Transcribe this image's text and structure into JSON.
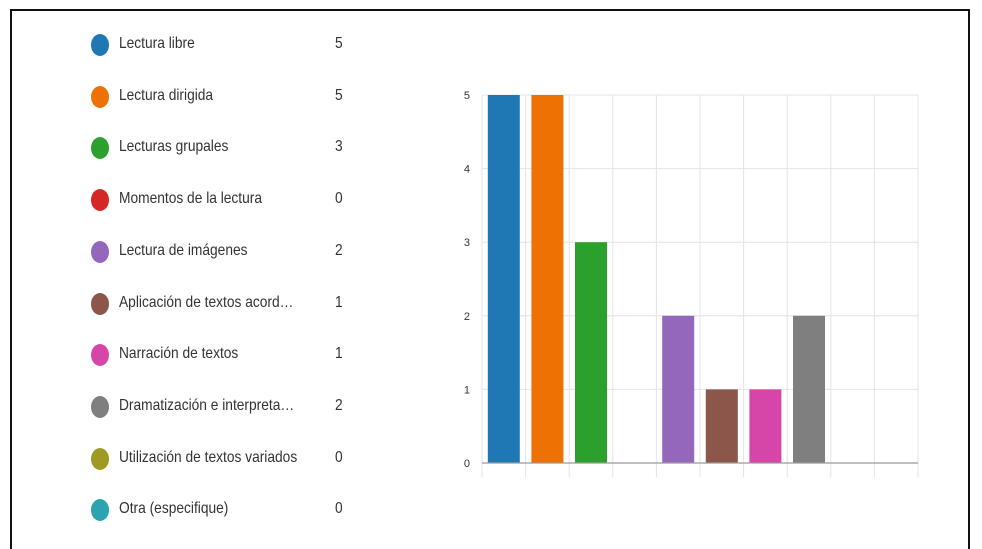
{
  "chart_data": {
    "type": "bar",
    "categories": [
      "Lectura libre",
      "Lectura dirigida",
      "Lecturas grupales",
      "Momentos de la lectura",
      "Lectura de imágenes",
      "Aplicación de textos acordes a...",
      "Narración de textos",
      "Dramatización e interpretació...",
      "Utilización de textos variados",
      "Otra (especifique)"
    ],
    "values": [
      5,
      5,
      3,
      0,
      2,
      1,
      1,
      2,
      0,
      0
    ],
    "colors": [
      "#1f77b4",
      "#ee7203",
      "#2ca02c",
      "#d62728",
      "#9467bd",
      "#8c564b",
      "#d646a8",
      "#7f7f7f",
      "#a09a22",
      "#2ba3b0"
    ],
    "ylim": [
      0,
      5
    ],
    "yticks": [
      "0",
      "1",
      "2",
      "3",
      "4",
      "5"
    ],
    "grid": true,
    "legend_position": "left"
  }
}
